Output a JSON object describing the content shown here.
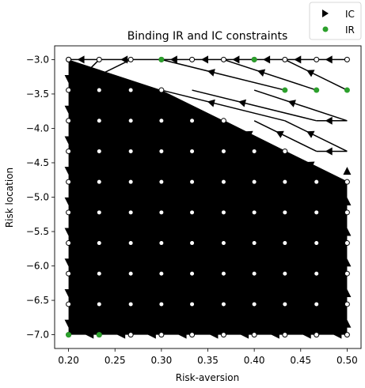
{
  "chart_data": {
    "type": "scatter",
    "title": "Binding IR and IC constraints",
    "xlabel": "Risk-aversion",
    "ylabel": "Risk location",
    "xlim": [
      0.185,
      0.515
    ],
    "ylim": [
      -7.2,
      -2.8
    ],
    "xticks": [
      0.2,
      0.25,
      0.3,
      0.35,
      0.4,
      0.45,
      0.5
    ],
    "xtick_labels": [
      "0.20",
      "0.25",
      "0.30",
      "0.35",
      "0.40",
      "0.45",
      "0.50"
    ],
    "yticks": [
      -3.0,
      -3.5,
      -4.0,
      -4.5,
      -5.0,
      -5.5,
      -6.0,
      -6.5,
      -7.0
    ],
    "ytick_labels": [
      "−3.0",
      "−3.5",
      "−4.0",
      "−4.5",
      "−5.0",
      "−5.5",
      "−6.0",
      "−6.5",
      "−7.0"
    ],
    "grid": false,
    "legend_position": "top-right (outside axes)",
    "x_grid": [
      0.2,
      0.233,
      0.267,
      0.3,
      0.333,
      0.367,
      0.4,
      0.433,
      0.467,
      0.5
    ],
    "y_grid": [
      -3.0,
      -3.444,
      -3.889,
      -4.333,
      -4.778,
      -5.222,
      -5.667,
      -6.111,
      -6.556,
      -7.0
    ],
    "feasible_region": {
      "upper_boundary": [
        [
          0.2,
          -3.0
        ],
        [
          0.3,
          -3.444
        ],
        [
          0.367,
          -3.889
        ],
        [
          0.433,
          -4.333
        ],
        [
          0.5,
          -4.778
        ]
      ]
    },
    "series": [
      {
        "name": "IC",
        "marker": "triangle-right",
        "color": "#000000",
        "description": "directed arrows between grid types for binding IC constraints"
      },
      {
        "name": "IR",
        "marker": "circle",
        "color": "#2ca02c",
        "points": [
          [
            0.3,
            -3.0
          ],
          [
            0.4,
            -3.0
          ],
          [
            0.433,
            -3.444
          ],
          [
            0.467,
            -3.444
          ],
          [
            0.5,
            -3.444
          ],
          [
            0.2,
            -7.0
          ],
          [
            0.233,
            -7.0
          ]
        ]
      }
    ],
    "ic_edges": [
      [
        [
          0.233,
          -3.0
        ],
        [
          0.2,
          -3.0
        ]
      ],
      [
        [
          0.3,
          -3.0
        ],
        [
          0.233,
          -3.0
        ]
      ],
      [
        [
          0.333,
          -3.0
        ],
        [
          0.3,
          -3.0
        ]
      ],
      [
        [
          0.367,
          -3.0
        ],
        [
          0.333,
          -3.0
        ]
      ],
      [
        [
          0.4,
          -3.0
        ],
        [
          0.367,
          -3.0
        ]
      ],
      [
        [
          0.433,
          -3.0
        ],
        [
          0.4,
          -3.0
        ]
      ],
      [
        [
          0.467,
          -3.0
        ],
        [
          0.433,
          -3.0
        ]
      ],
      [
        [
          0.5,
          -3.0
        ],
        [
          0.467,
          -3.0
        ]
      ],
      [
        [
          0.5,
          -3.444
        ],
        [
          0.433,
          -3.0
        ]
      ],
      [
        [
          0.467,
          -3.444
        ],
        [
          0.367,
          -3.0
        ]
      ],
      [
        [
          0.433,
          -3.444
        ],
        [
          0.3,
          -3.0
        ]
      ],
      [
        [
          0.5,
          -3.889
        ],
        [
          0.4,
          -3.444
        ]
      ],
      [
        [
          0.467,
          -3.889
        ],
        [
          0.333,
          -3.444
        ]
      ],
      [
        [
          0.433,
          -3.889
        ],
        [
          0.3,
          -3.444
        ]
      ],
      [
        [
          0.5,
          -4.333
        ],
        [
          0.433,
          -3.889
        ]
      ],
      [
        [
          0.467,
          -4.333
        ],
        [
          0.4,
          -3.889
        ]
      ],
      [
        [
          0.433,
          -4.333
        ],
        [
          0.367,
          -3.889
        ]
      ],
      [
        [
          0.5,
          -3.889
        ],
        [
          0.467,
          -3.889
        ]
      ],
      [
        [
          0.5,
          -4.333
        ],
        [
          0.467,
          -4.333
        ]
      ],
      [
        [
          0.5,
          -4.778
        ],
        [
          0.433,
          -4.333
        ]
      ],
      [
        [
          0.267,
          -3.0
        ],
        [
          0.2,
          -3.444
        ]
      ],
      [
        [
          0.3,
          -3.444
        ],
        [
          0.2,
          -3.889
        ]
      ],
      [
        [
          0.233,
          -3.0
        ],
        [
          0.2,
          -3.444
        ]
      ]
    ]
  }
}
